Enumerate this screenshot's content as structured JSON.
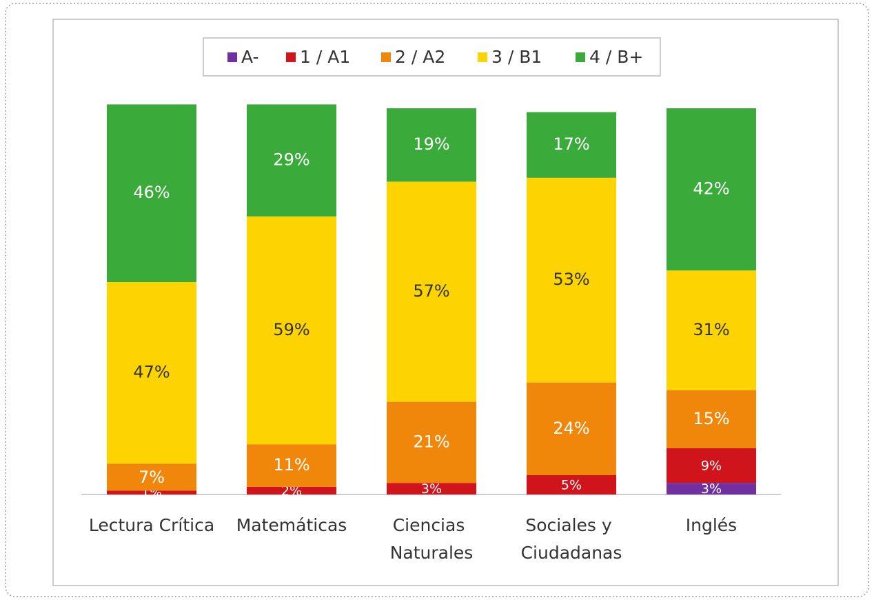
{
  "chart_data": {
    "type": "stacked_bar",
    "categories": [
      "Lectura Crítica",
      "Matemáticas",
      "Ciencias Naturales",
      "Sociales y Ciudadanas",
      "Inglés"
    ],
    "series": [
      {
        "name": "A-",
        "color": "#7030a0",
        "values": [
          null,
          null,
          null,
          null,
          3
        ],
        "value_labels": [
          null,
          null,
          null,
          null,
          "3%"
        ]
      },
      {
        "name": "1 / A1",
        "color": "#d0141b",
        "values": [
          1,
          2,
          3,
          5,
          9
        ],
        "value_labels": [
          "1%",
          "2%",
          "3%",
          "5%",
          "9%"
        ]
      },
      {
        "name": "2 / A2",
        "color": "#f0860a",
        "values": [
          7,
          11,
          21,
          24,
          15
        ],
        "value_labels": [
          "7%",
          "11%",
          "21%",
          "24%",
          "15%"
        ]
      },
      {
        "name": "3 / B1",
        "color": "#fdd400",
        "values": [
          47,
          59,
          57,
          53,
          31
        ],
        "value_labels": [
          "47%",
          "59%",
          "57%",
          "53%",
          "31%"
        ]
      },
      {
        "name": "4 / B+",
        "color": "#3aaa3a",
        "values": [
          46,
          29,
          19,
          17,
          42
        ],
        "value_labels": [
          "46%",
          "29%",
          "19%",
          "17%",
          "42%"
        ]
      }
    ],
    "ylim": [
      0,
      100
    ],
    "legend": "top"
  }
}
